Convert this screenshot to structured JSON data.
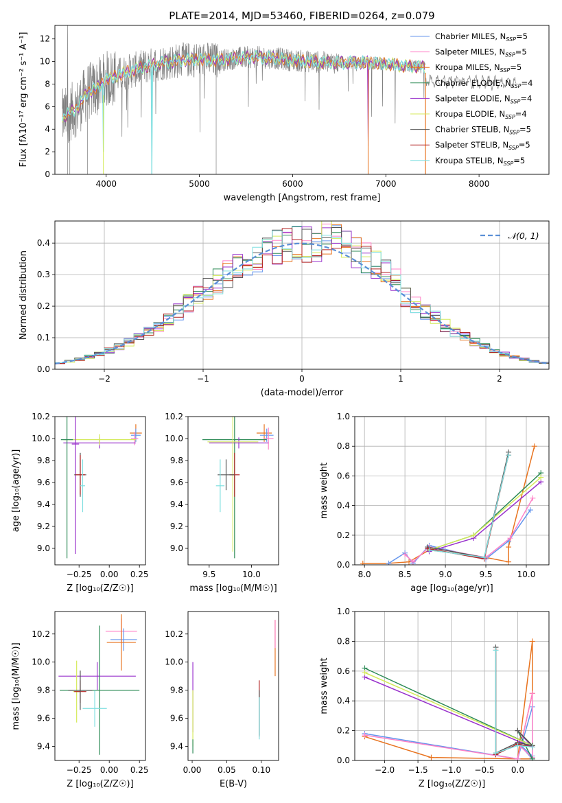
{
  "title": "PLATE=2014, MJD=53460, FIBERID=0264, z=0.079",
  "colors": {
    "Chabrier MILES": "#6495ed",
    "Salpeter MILES": "#ff82c8",
    "Kroupa MILES": "#e8731e",
    "Chabrier ELODIE": "#2e8b57",
    "Salpeter ELODIE": "#9932cc",
    "Kroupa ELODIE": "#d4ea5a",
    "Chabrier STELIB": "#555555",
    "Salpeter STELIB": "#b22222",
    "Kroupa STELIB": "#7fdfe0",
    "normal": "#5a8fd6"
  },
  "chart_data": [
    {
      "id": "spectrum",
      "type": "line",
      "xlabel": "wavelength [Angstrom, rest frame]",
      "ylabel": "Flux [fλ10⁻¹⁷ erg cm⁻² s⁻¹ A⁻¹]",
      "xlim": [
        3450,
        8750
      ],
      "ylim": [
        0,
        13.2
      ],
      "xticks": [
        4000,
        5000,
        6000,
        7000,
        8000
      ],
      "yticks": [
        0,
        2,
        4,
        6,
        8,
        10,
        12
      ],
      "legend_position": "right",
      "legend": [
        {
          "base": "Chabrier MILES, N",
          "sub": "SSP",
          "tail": "=5"
        },
        {
          "base": "Salpeter MILES, N",
          "sub": "SSP",
          "tail": "=5"
        },
        {
          "base": "Kroupa MILES, N",
          "sub": "SSP",
          "tail": "=5"
        },
        {
          "base": "Chabrier ELODIE, N",
          "sub": "SSP",
          "tail": "=4"
        },
        {
          "base": "Salpeter ELODIE, N",
          "sub": "SSP",
          "tail": "=4"
        },
        {
          "base": "Kroupa ELODIE, N",
          "sub": "SSP",
          "tail": "=4"
        },
        {
          "base": "Chabrier STELIB, N",
          "sub": "SSP",
          "tail": "=5"
        },
        {
          "base": "Salpeter STELIB, N",
          "sub": "SSP",
          "tail": "=5"
        },
        {
          "base": "Kroupa STELIB, N",
          "sub": "SSP",
          "tail": "=5"
        }
      ],
      "continuum": [
        [
          3530,
          5.0
        ],
        [
          3600,
          5.4
        ],
        [
          3700,
          6.0
        ],
        [
          3800,
          7.3
        ],
        [
          3900,
          7.6
        ],
        [
          4000,
          8.4
        ],
        [
          4200,
          9.0
        ],
        [
          4400,
          9.5
        ],
        [
          4600,
          9.9
        ],
        [
          4800,
          10.1
        ],
        [
          5000,
          10.2
        ],
        [
          5200,
          10.1
        ],
        [
          5400,
          10.3
        ],
        [
          5600,
          10.4
        ],
        [
          5800,
          10.3
        ],
        [
          6000,
          10.1
        ],
        [
          6200,
          10.0
        ],
        [
          6400,
          9.9
        ],
        [
          6600,
          9.9
        ],
        [
          6800,
          9.9
        ],
        [
          7000,
          9.8
        ],
        [
          7200,
          9.6
        ],
        [
          7420,
          9.5
        ]
      ],
      "dips": [
        [
          3970,
          3.0
        ],
        [
          4490,
          1.0
        ],
        [
          6810,
          3.5
        ]
      ],
      "model_end": [
        {
          "x": 7430,
          "y": 8.4
        },
        {
          "x": 8400,
          "y": 7.8
        }
      ]
    },
    {
      "id": "residuals",
      "type": "line",
      "xlabel": "(data-model)/error",
      "ylabel": "Normed distribution",
      "xlim": [
        -2.5,
        2.5
      ],
      "ylim": [
        0,
        0.47
      ],
      "xticks": [
        -2,
        -1,
        0,
        1,
        2
      ],
      "yticks": [
        0.0,
        0.1,
        0.2,
        0.3,
        0.4
      ],
      "grid": true,
      "legend_position": "top-right",
      "legend": "𝒩(0, 1)",
      "bin_width": 0.1,
      "bins_start": -2.5
    },
    {
      "id": "age-vs-Z",
      "type": "scatter",
      "xlabel": "Z [log₁₀(Z/Z☉)]",
      "ylabel": "age  [log₁₀(age/yr)]",
      "xlim": [
        -0.45,
        0.3
      ],
      "ylim": [
        8.85,
        10.2
      ],
      "xticks": [
        -0.25,
        0.0,
        0.25
      ],
      "yticks": [
        9.0,
        9.2,
        9.4,
        9.6,
        9.8,
        10.0,
        10.2
      ],
      "crosses": [
        {
          "x": 0.22,
          "y": 10.05,
          "ex": 0.05,
          "ey": 0.08,
          "c": "Kroupa MILES"
        },
        {
          "x": 0.22,
          "y": 10.03,
          "ex": 0.04,
          "ey": 0.06,
          "c": "Chabrier MILES"
        },
        {
          "x": 0.21,
          "y": 10.0,
          "ex": 0.03,
          "ey": 0.06,
          "c": "Salpeter MILES"
        },
        {
          "x": -0.08,
          "y": 9.96,
          "ex": 0.3,
          "ey": 0.05,
          "c": "Salpeter ELODIE"
        },
        {
          "x": -0.08,
          "y": 9.99,
          "ex": 0.3,
          "ey": 0.05,
          "c": "Kroupa ELODIE"
        },
        {
          "x": -0.35,
          "y": 9.99,
          "ex": 0.05,
          "ey": 1.08,
          "c": "Chabrier ELODIE"
        },
        {
          "x": -0.28,
          "y": 9.95,
          "ex": 0.03,
          "ey": 1.0,
          "c": "Salpeter ELODIE"
        },
        {
          "x": -0.24,
          "y": 9.67,
          "ex": 0.05,
          "ey": 0.2,
          "c": "Chabrier STELIB"
        },
        {
          "x": -0.24,
          "y": 9.67,
          "ex": 0.04,
          "ey": 0.18,
          "c": "Salpeter STELIB"
        },
        {
          "x": -0.22,
          "y": 9.57,
          "ex": 0.02,
          "ey": 0.24,
          "c": "Kroupa STELIB"
        }
      ]
    },
    {
      "id": "age-vs-mass",
      "type": "scatter",
      "xlabel": "mass [log₁₀(M/M☉)]",
      "ylabel": "",
      "xlim": [
        9.25,
        10.32
      ],
      "ylim": [
        8.85,
        10.2
      ],
      "xticks": [
        9.5,
        10.0
      ],
      "yticks": [
        9.0,
        9.2,
        9.4,
        9.6,
        9.8,
        10.0,
        10.2
      ],
      "crosses": [
        {
          "x": 10.15,
          "y": 10.05,
          "ex": 0.09,
          "ey": 0.08,
          "c": "Kroupa MILES"
        },
        {
          "x": 10.18,
          "y": 10.03,
          "ex": 0.08,
          "ey": 0.06,
          "c": "Chabrier MILES"
        },
        {
          "x": 10.2,
          "y": 10.0,
          "ex": 0.06,
          "ey": 0.1,
          "c": "Salpeter MILES"
        },
        {
          "x": 9.8,
          "y": 9.99,
          "ex": 0.38,
          "ey": 1.08,
          "c": "Chabrier ELODIE"
        },
        {
          "x": 9.85,
          "y": 9.96,
          "ex": 0.35,
          "ey": 0.05,
          "c": "Salpeter ELODIE"
        },
        {
          "x": 9.78,
          "y": 9.97,
          "ex": 0.3,
          "ey": 1.0,
          "c": "Kroupa ELODIE"
        },
        {
          "x": 9.8,
          "y": 9.67,
          "ex": 0.06,
          "ey": 0.2,
          "c": "Salpeter STELIB"
        },
        {
          "x": 9.7,
          "y": 9.67,
          "ex": 0.1,
          "ey": 0.14,
          "c": "Chabrier STELIB"
        },
        {
          "x": 9.63,
          "y": 9.57,
          "ex": 0.05,
          "ey": 0.24,
          "c": "Kroupa STELIB"
        }
      ]
    },
    {
      "id": "mass-weight-vs-age",
      "type": "line",
      "xlabel": "age  [log₁₀(age/yr)]",
      "ylabel": "mass weight",
      "xlim": [
        7.88,
        10.28
      ],
      "ylim": [
        0,
        1.0
      ],
      "xticks": [
        8.0,
        8.5,
        9.0,
        9.5,
        10.0
      ],
      "yticks": [
        0.0,
        0.2,
        0.4,
        0.6,
        0.8,
        1.0
      ],
      "grid": true,
      "series": [
        {
          "c": "Kroupa MILES",
          "x": [
            7.98,
            8.3,
            8.55,
            8.8,
            9.5,
            9.78,
            9.78,
            10.1
          ],
          "y": [
            0.01,
            0.01,
            0.02,
            0.1,
            0.05,
            0.02,
            0.12,
            0.8
          ]
        },
        {
          "c": "Chabrier MILES",
          "x": [
            8.3,
            8.5,
            8.6,
            8.8,
            9.5,
            9.78,
            10.05
          ],
          "y": [
            0.01,
            0.08,
            0.01,
            0.13,
            0.04,
            0.16,
            0.37
          ]
        },
        {
          "c": "Salpeter MILES",
          "x": [
            8.5,
            8.6,
            8.8,
            9.5,
            9.8,
            10.08
          ],
          "y": [
            0.07,
            0.02,
            0.12,
            0.05,
            0.18,
            0.45
          ]
        },
        {
          "c": "Chabrier ELODIE",
          "x": [
            8.8,
            9.35,
            10.18
          ],
          "y": [
            0.1,
            0.2,
            0.62
          ]
        },
        {
          "c": "Salpeter ELODIE",
          "x": [
            8.8,
            9.35,
            10.18
          ],
          "y": [
            0.09,
            0.18,
            0.56
          ]
        },
        {
          "c": "Kroupa ELODIE",
          "x": [
            8.8,
            9.35,
            10.18
          ],
          "y": [
            0.1,
            0.2,
            0.59
          ]
        },
        {
          "c": "Chabrier STELIB",
          "x": [
            8.78,
            9.48,
            9.78
          ],
          "y": [
            0.12,
            0.05,
            0.76
          ]
        },
        {
          "c": "Salpeter STELIB",
          "x": [
            8.78,
            9.48,
            9.78
          ],
          "y": [
            0.11,
            0.04,
            0.74
          ]
        },
        {
          "c": "Kroupa STELIB",
          "x": [
            8.8,
            9.48,
            9.78
          ],
          "y": [
            0.1,
            0.05,
            0.74
          ]
        }
      ]
    },
    {
      "id": "mass-vs-Z",
      "type": "scatter",
      "xlabel": "Z [log₁₀(Z/Z☉)]",
      "ylabel": "mass [log₁₀(M/M☉)]",
      "xlim": [
        -0.45,
        0.3
      ],
      "ylim": [
        9.3,
        10.36
      ],
      "xticks": [
        -0.25,
        0.0,
        0.25
      ],
      "yticks": [
        9.4,
        9.6,
        9.8,
        10.0,
        10.2
      ],
      "crosses": [
        {
          "x": 0.1,
          "y": 10.22,
          "ex": 0.13,
          "ey": 0.09,
          "c": "Salpeter MILES"
        },
        {
          "x": 0.12,
          "y": 10.16,
          "ex": 0.11,
          "ey": 0.08,
          "c": "Chabrier MILES"
        },
        {
          "x": 0.1,
          "y": 10.14,
          "ex": 0.12,
          "ey": 0.2,
          "c": "Kroupa MILES"
        },
        {
          "x": -0.1,
          "y": 9.9,
          "ex": 0.32,
          "ey": 0.1,
          "c": "Salpeter ELODIE"
        },
        {
          "x": -0.08,
          "y": 9.8,
          "ex": 0.33,
          "ey": 0.46,
          "c": "Chabrier ELODIE"
        },
        {
          "x": -0.27,
          "y": 9.79,
          "ex": 0.03,
          "ey": 0.22,
          "c": "Kroupa ELODIE"
        },
        {
          "x": -0.24,
          "y": 9.79,
          "ex": 0.05,
          "ey": 0.08,
          "c": "Salpeter STELIB"
        },
        {
          "x": -0.24,
          "y": 9.8,
          "ex": 0.1,
          "ey": 0.14,
          "c": "Chabrier STELIB"
        },
        {
          "x": -0.12,
          "y": 9.67,
          "ex": 0.1,
          "ey": 0.13,
          "c": "Kroupa STELIB"
        }
      ]
    },
    {
      "id": "mass-vs-EBV",
      "type": "scatter",
      "xlabel": "E(B-V)",
      "ylabel": "",
      "xlim": [
        -0.006,
        0.125
      ],
      "ylim": [
        9.3,
        10.36
      ],
      "xticks": [
        0.0,
        0.05,
        0.1
      ],
      "yticks": [
        9.4,
        9.6,
        9.8,
        10.0,
        10.2
      ],
      "crosses": [
        {
          "x": 0.001,
          "y": 9.75,
          "ex": 0.0,
          "ey": 0.25,
          "c": "Salpeter ELODIE"
        },
        {
          "x": 0.001,
          "y": 9.6,
          "ex": 0.0,
          "ey": 0.2,
          "c": "Kroupa ELODIE"
        },
        {
          "x": 0.001,
          "y": 9.4,
          "ex": 0.0,
          "ey": 0.05,
          "c": "Chabrier ELODIE"
        },
        {
          "x": 0.097,
          "y": 9.67,
          "ex": 0.0,
          "ey": 0.2,
          "c": "Salpeter STELIB"
        },
        {
          "x": 0.097,
          "y": 9.64,
          "ex": 0.0,
          "ey": 0.16,
          "c": "Chabrier STELIB"
        },
        {
          "x": 0.097,
          "y": 9.6,
          "ex": 0.0,
          "ey": 0.15,
          "c": "Kroupa STELIB"
        },
        {
          "x": 0.12,
          "y": 10.1,
          "ex": 0.0,
          "ey": 0.2,
          "c": "Kroupa MILES"
        },
        {
          "x": 0.12,
          "y": 10.2,
          "ex": 0.0,
          "ey": 0.1,
          "c": "Salpeter MILES"
        }
      ]
    },
    {
      "id": "mass-weight-vs-Z",
      "type": "line",
      "xlabel": "Z [log₁₀(Z/Z☉)]",
      "ylabel": "mass weight",
      "xlim": [
        -2.45,
        0.47
      ],
      "ylim": [
        0,
        1.0
      ],
      "xticks": [
        -2.0,
        -1.5,
        -1.0,
        -0.5,
        0.0
      ],
      "yticks": [
        0.0,
        0.2,
        0.4,
        0.6,
        0.8,
        1.0
      ],
      "grid": true,
      "series": [
        {
          "c": "Kroupa MILES",
          "x": [
            -2.3,
            -1.3,
            0.0,
            0.22,
            0.22,
            0.0,
            0.22
          ],
          "y": [
            0.16,
            0.02,
            0.01,
            0.8,
            0.45,
            0.01,
            0.01
          ]
        },
        {
          "c": "Chabrier MILES",
          "x": [
            -2.3,
            0.0,
            0.22,
            0.22,
            0.0,
            0.22
          ],
          "y": [
            0.18,
            0.01,
            0.36,
            0.01,
            0.12,
            0.03
          ]
        },
        {
          "c": "Salpeter MILES",
          "x": [
            -2.3,
            0.0,
            0.22,
            0.22,
            0.0
          ],
          "y": [
            0.17,
            0.01,
            0.45,
            0.02,
            0.11
          ]
        },
        {
          "c": "Chabrier ELODIE",
          "x": [
            -2.3,
            0.22,
            0.0,
            0.22
          ],
          "y": [
            0.62,
            0.1,
            0.2,
            0.01
          ]
        },
        {
          "c": "Salpeter ELODIE",
          "x": [
            -2.3,
            0.22,
            0.0
          ],
          "y": [
            0.56,
            0.09,
            0.2
          ]
        },
        {
          "c": "Kroupa ELODIE",
          "x": [
            -2.3,
            0.22,
            0.0
          ],
          "y": [
            0.59,
            0.1,
            0.2
          ]
        },
        {
          "c": "Chabrier STELIB",
          "x": [
            -0.33,
            -0.33,
            0.0,
            0.22,
            0.0
          ],
          "y": [
            0.76,
            0.05,
            0.12,
            0.1,
            0.2
          ]
        },
        {
          "c": "Salpeter STELIB",
          "x": [
            -0.33,
            -0.33,
            0.0,
            0.22
          ],
          "y": [
            0.74,
            0.04,
            0.11,
            0.09
          ]
        },
        {
          "c": "Kroupa STELIB",
          "x": [
            -0.33,
            -0.33,
            0.0,
            0.22
          ],
          "y": [
            0.74,
            0.05,
            0.1,
            0.09
          ]
        }
      ]
    }
  ]
}
